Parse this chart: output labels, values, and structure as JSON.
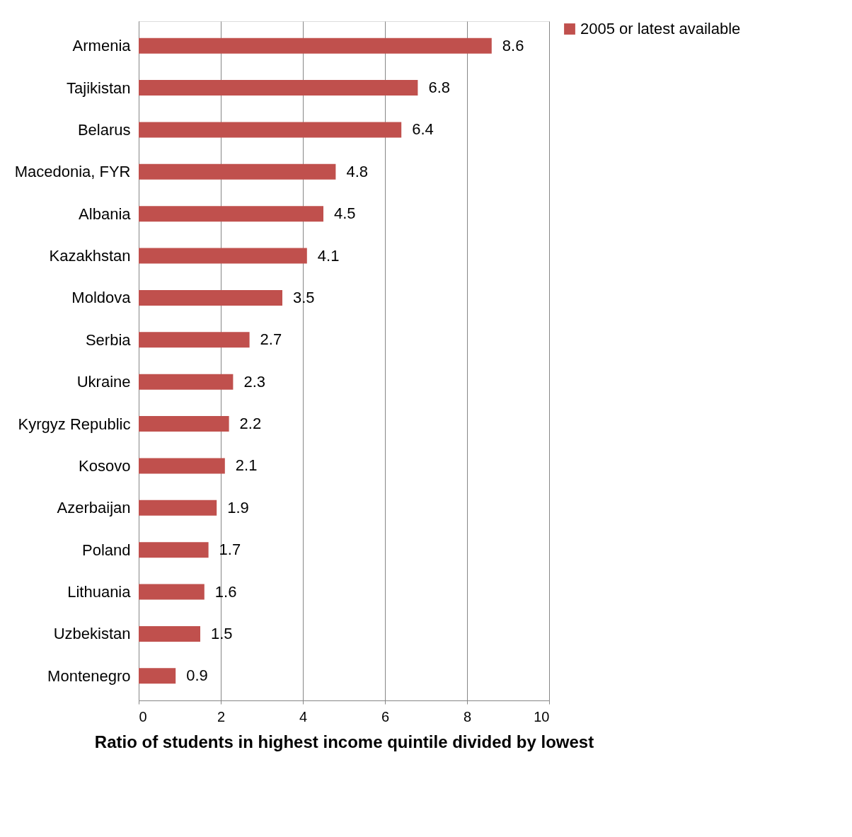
{
  "chart_data": {
    "type": "bar",
    "orientation": "horizontal",
    "xlabel": "Ratio of students in highest income quintile divided by lowest",
    "categories": [
      "Armenia",
      "Tajikistan",
      "Belarus",
      "Macedonia, FYR",
      "Albania",
      "Kazakhstan",
      "Moldova",
      "Serbia",
      "Ukraine",
      "Kyrgyz Republic",
      "Kosovo",
      "Azerbaijan",
      "Poland",
      "Lithuania",
      "Uzbekistan",
      "Montenegro"
    ],
    "series": [
      {
        "name": "2005 or latest available",
        "color": "#c0504d",
        "values": [
          8.6,
          6.8,
          6.4,
          4.8,
          4.5,
          4.1,
          3.5,
          2.7,
          2.3,
          2.2,
          2.1,
          1.9,
          1.7,
          1.6,
          1.5,
          0.9
        ]
      }
    ],
    "xlim": [
      0,
      10
    ],
    "xticks": [
      0,
      2,
      4,
      6,
      8,
      10
    ],
    "grid": "x",
    "legend": "right",
    "data_labels": true
  }
}
